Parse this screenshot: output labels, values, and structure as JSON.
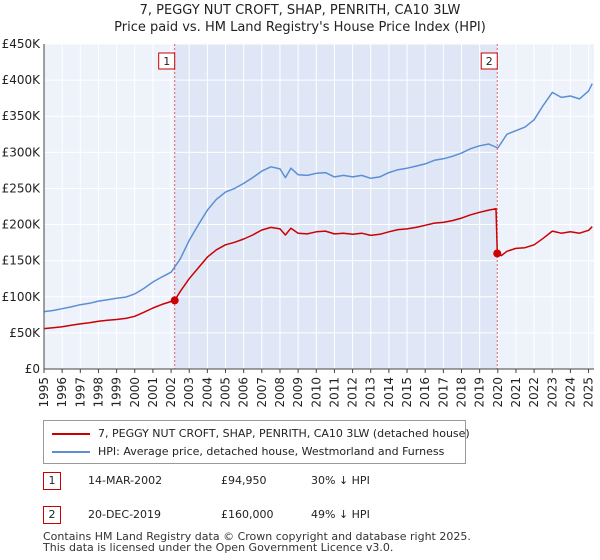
{
  "header": {
    "title": "7, PEGGY NUT CROFT, SHAP, PENRITH, CA10 3LW",
    "subtitle": "Price paid vs. HM Land Registry's House Price Index (HPI)"
  },
  "legend": {
    "items": [
      {
        "label": "7, PEGGY NUT CROFT, SHAP, PENRITH, CA10 3LW (detached house)",
        "color": "#cc0000"
      },
      {
        "label": "HPI: Average price, detached house, Westmorland and Furness",
        "color": "#5b8fd4"
      }
    ]
  },
  "sales": [
    {
      "num": "1",
      "date": "14-MAR-2002",
      "price": "£94,950",
      "hpi": "30% ↓ HPI"
    },
    {
      "num": "2",
      "date": "20-DEC-2019",
      "price": "£160,000",
      "hpi": "49% ↓ HPI"
    }
  ],
  "footer": {
    "line1": "Contains HM Land Registry data © Crown copyright and database right 2025.",
    "line2": "This data is licensed under the Open Government Licence v3.0."
  },
  "chart_data": {
    "type": "line",
    "title": "7, PEGGY NUT CROFT, SHAP, PENRITH, CA10 3LW",
    "subtitle": "Price paid vs. HM Land Registry's House Price Index (HPI)",
    "xlabel": "",
    "ylabel": "",
    "xlim": [
      1995,
      2025.3
    ],
    "ylim": [
      0,
      450000
    ],
    "grid": true,
    "y_ticks": [
      0,
      50000,
      100000,
      150000,
      200000,
      250000,
      300000,
      350000,
      400000,
      450000
    ],
    "y_tick_labels": [
      "£0",
      "£50K",
      "£100K",
      "£150K",
      "£200K",
      "£250K",
      "£300K",
      "£350K",
      "£400K",
      "£450K"
    ],
    "x_ticks": [
      1995,
      1996,
      1997,
      1998,
      1999,
      2000,
      2001,
      2002,
      2003,
      2004,
      2005,
      2006,
      2007,
      2008,
      2009,
      2010,
      2011,
      2012,
      2013,
      2014,
      2015,
      2016,
      2017,
      2018,
      2019,
      2020,
      2021,
      2022,
      2023,
      2024,
      2025
    ],
    "x_tick_labels": [
      "1995",
      "1996",
      "1997",
      "1998",
      "1999",
      "2000",
      "2001",
      "2002",
      "2003",
      "2004",
      "2005",
      "2006",
      "2007",
      "2008",
      "2009",
      "2010",
      "2011",
      "2012",
      "2013",
      "2014",
      "2015",
      "2016",
      "2017",
      "2018",
      "2019",
      "2020",
      "2021",
      "2022",
      "2023",
      "2024",
      "2025"
    ],
    "shaded_range": [
      2002.2,
      2019.97
    ],
    "series": [
      {
        "name": "7, PEGGY NUT CROFT, SHAP, PENRITH, CA10 3LW (detached house)",
        "color": "#cc0000",
        "x": [
          1995,
          1995.5,
          1996,
          1996.5,
          1997,
          1997.5,
          1998,
          1998.5,
          1999,
          1999.5,
          2000,
          2000.5,
          2001,
          2001.5,
          2002.2,
          2002.5,
          2003,
          2003.5,
          2004,
          2004.5,
          2005,
          2005.5,
          2006,
          2006.5,
          2007,
          2007.5,
          2008,
          2008.3,
          2008.6,
          2009,
          2009.5,
          2010,
          2010.5,
          2011,
          2011.5,
          2012,
          2012.5,
          2013,
          2013.5,
          2014,
          2014.5,
          2015,
          2015.5,
          2016,
          2016.5,
          2017,
          2017.5,
          2018,
          2018.5,
          2019,
          2019.5,
          2019.9,
          2019.97,
          2020.2,
          2020.5,
          2021,
          2021.5,
          2022,
          2022.5,
          2023,
          2023.5,
          2024,
          2024.5,
          2025,
          2025.2
        ],
        "y": [
          56000,
          57000,
          58500,
          60500,
          62500,
          64000,
          66000,
          67500,
          68500,
          70000,
          73000,
          78500,
          84500,
          89500,
          94950,
          107000,
          125000,
          140000,
          155000,
          165000,
          172000,
          175500,
          180000,
          185500,
          192500,
          196000,
          194000,
          185500,
          195000,
          188000,
          187000,
          190000,
          191000,
          187000,
          188000,
          186500,
          188000,
          185000,
          186500,
          190000,
          193000,
          194000,
          196000,
          199000,
          202000,
          203000,
          205500,
          209000,
          213500,
          217000,
          220000,
          222000,
          160000,
          157000,
          163000,
          167000,
          168000,
          172000,
          181000,
          191000,
          188000,
          190000,
          188000,
          192000,
          197000
        ]
      },
      {
        "name": "HPI: Average price, detached house, Westmorland and Furness",
        "color": "#5b8fd4",
        "x": [
          1995,
          1995.5,
          1996,
          1996.5,
          1997,
          1997.5,
          1998,
          1998.5,
          1999,
          1999.5,
          2000,
          2000.5,
          2001,
          2001.5,
          2002,
          2002.5,
          2003,
          2003.5,
          2004,
          2004.5,
          2005,
          2005.5,
          2006,
          2006.5,
          2007,
          2007.5,
          2008,
          2008.3,
          2008.6,
          2009,
          2009.5,
          2010,
          2010.5,
          2011,
          2011.5,
          2012,
          2012.5,
          2013,
          2013.5,
          2014,
          2014.5,
          2015,
          2015.5,
          2016,
          2016.5,
          2017,
          2017.5,
          2018,
          2018.5,
          2019,
          2019.5,
          2020,
          2020.5,
          2021,
          2021.5,
          2022,
          2022.5,
          2023,
          2023.5,
          2024,
          2024.5,
          2025,
          2025.2
        ],
        "y": [
          79500,
          81000,
          83500,
          86000,
          89000,
          91000,
          94000,
          96000,
          98000,
          99500,
          104000,
          111500,
          120500,
          127500,
          134000,
          152000,
          178000,
          199500,
          220000,
          235000,
          245000,
          250000,
          257000,
          265000,
          274000,
          280000,
          277000,
          265000,
          278000,
          269000,
          268000,
          271000,
          272000,
          266000,
          268000,
          266000,
          268000,
          264000,
          266000,
          272000,
          276000,
          278000,
          281000,
          284000,
          289000,
          291000,
          294500,
          299000,
          305000,
          309000,
          311500,
          306000,
          325000,
          330000,
          335000,
          345000,
          365000,
          383000,
          376000,
          378000,
          374000,
          385000,
          395000
        ]
      }
    ],
    "annotations": [
      {
        "label": "1",
        "x": 2002.2,
        "y": 94950
      },
      {
        "label": "2",
        "x": 2019.97,
        "y": 160000
      }
    ]
  }
}
